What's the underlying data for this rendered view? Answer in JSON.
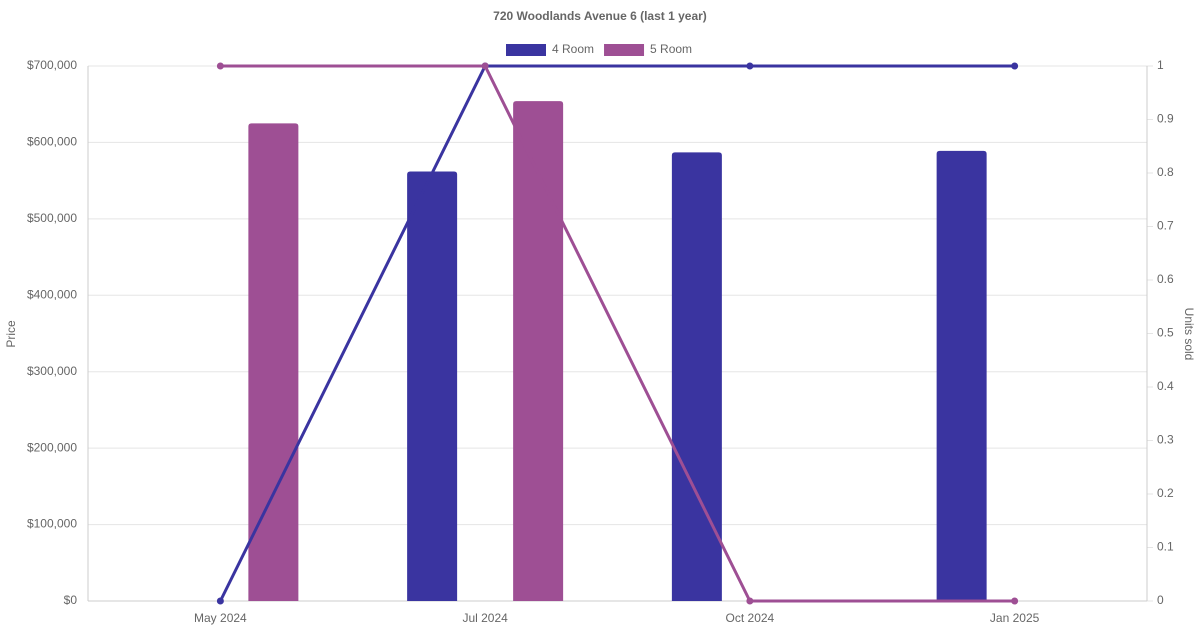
{
  "chart_data": {
    "type": "bar_line",
    "title": "720 Woodlands Avenue 6 (last 1 year)",
    "y_label": "Price",
    "y2_label": "Units sold",
    "categories": [
      "May 2024",
      "Jul 2024",
      "Oct 2024",
      "Jan 2025"
    ],
    "series": [
      {
        "name": "4 Room",
        "color": "#3a34a0",
        "values": [
          null,
          562000,
          587000,
          589000
        ],
        "units_sold": [
          0,
          1,
          1,
          1
        ]
      },
      {
        "name": "5 Room",
        "color": "#9e4f94",
        "values": [
          625000,
          654000,
          null,
          null
        ],
        "units_sold": [
          1,
          1,
          0,
          0
        ]
      }
    ],
    "ylim": [
      0,
      700000
    ],
    "yticks": [
      {
        "value": 0,
        "label": "$0"
      },
      {
        "value": 100000,
        "label": "$100,000"
      },
      {
        "value": 200000,
        "label": "$200,000"
      },
      {
        "value": 300000,
        "label": "$300,000"
      },
      {
        "value": 400000,
        "label": "$400,000"
      },
      {
        "value": 500000,
        "label": "$500,000"
      },
      {
        "value": 600000,
        "label": "$600,000"
      },
      {
        "value": 700000,
        "label": "$700,000"
      }
    ],
    "y2lim": [
      0,
      1
    ],
    "y2ticks": [
      0,
      0.1,
      0.2,
      0.3,
      0.4,
      0.5,
      0.6,
      0.7,
      0.8,
      0.9,
      1
    ],
    "grid": true,
    "legend": "top"
  }
}
